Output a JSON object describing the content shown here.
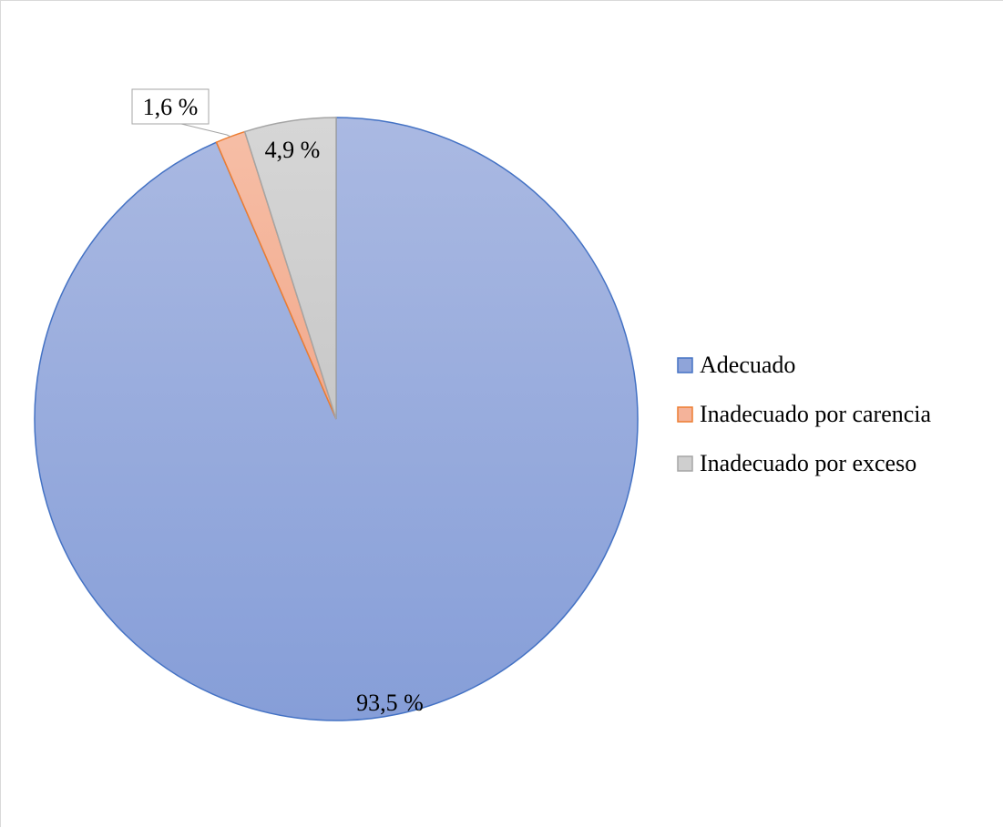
{
  "chart_data": {
    "type": "pie",
    "title": "",
    "categories": [
      "Adecuado",
      "Inadecuado por carencia",
      "Inadecuado por exceso"
    ],
    "values": [
      93.5,
      1.6,
      4.9
    ],
    "labels": [
      "93,5 %",
      "1,6 %",
      "4,9 %"
    ],
    "colors": [
      "#8fa4d9",
      "#f4b39a",
      "#cfcfcf"
    ],
    "stroke_colors": [
      "#4472c4",
      "#ed7d31",
      "#a5a5a5"
    ],
    "start_angle_deg": 0,
    "direction": "counterclockwise",
    "legend_position": "right",
    "gridlines": false
  }
}
